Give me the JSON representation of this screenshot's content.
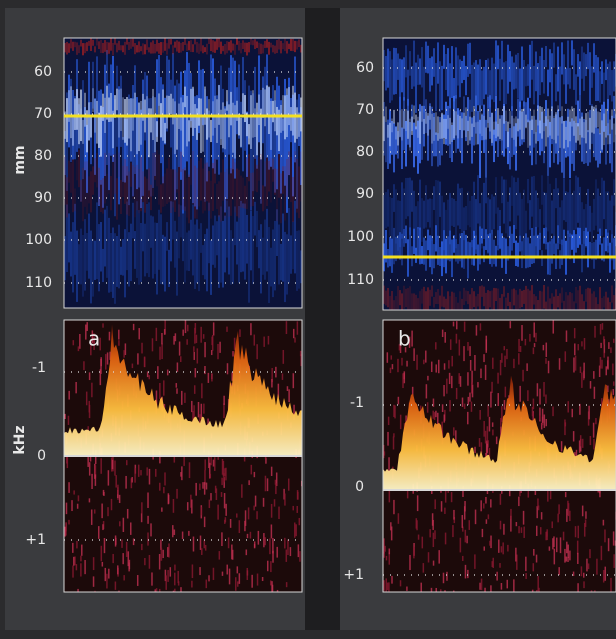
{
  "depth_unit": "mm",
  "frequency_unit": "kHz",
  "left_panel": {
    "depth_ticks": [
      "60",
      "70",
      "80",
      "90",
      "100",
      "110"
    ],
    "label": "a",
    "frequency_ticks": [
      "-1",
      "0",
      "+1"
    ]
  },
  "right_panel": {
    "depth_ticks": [
      "60",
      "70",
      "80",
      "90",
      "100",
      "110"
    ],
    "label": "b",
    "frequency_ticks": [
      "-1",
      "0",
      "+1"
    ]
  }
}
